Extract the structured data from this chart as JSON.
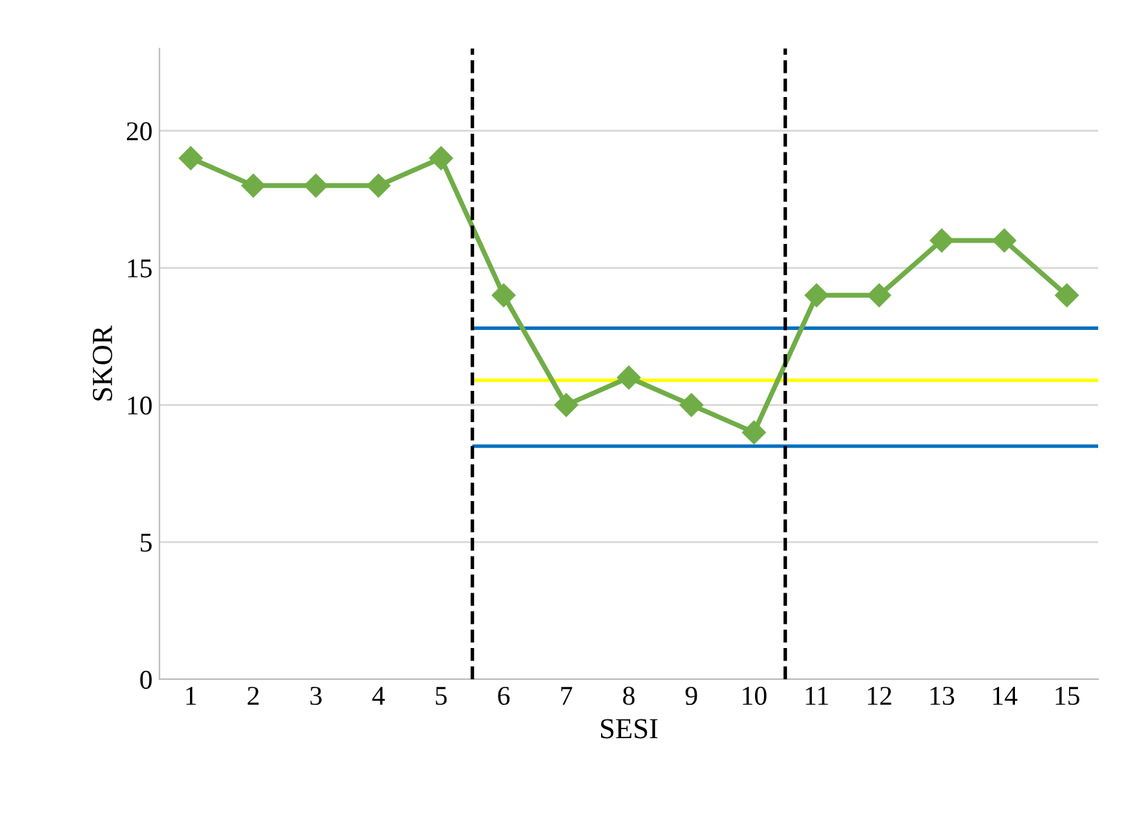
{
  "chart_data": {
    "type": "line",
    "xlabel": "SESI",
    "ylabel": "SKOR",
    "x": [
      1,
      2,
      3,
      4,
      5,
      6,
      7,
      8,
      9,
      10,
      11,
      12,
      13,
      14,
      15
    ],
    "series": [
      {
        "color": "#70ad47",
        "values": [
          19,
          18,
          18,
          18,
          19,
          14,
          10,
          11,
          10,
          9,
          14,
          14,
          16,
          16,
          14
        ],
        "marker": "diamond"
      }
    ],
    "xlim": [
      0.5,
      15.5
    ],
    "xticks": [
      1,
      2,
      3,
      4,
      5,
      6,
      7,
      8,
      9,
      10,
      11,
      12,
      13,
      14,
      15
    ],
    "ylim": [
      0,
      23
    ],
    "yticks": [
      0,
      5,
      10,
      15,
      20
    ],
    "grid": "y",
    "ref_lines": [
      {
        "axis": "x",
        "value": 5.5,
        "color": "#000000",
        "line_style": "dashed"
      },
      {
        "axis": "x",
        "value": 10.5,
        "color": "#000000",
        "line_style": "dashed"
      },
      {
        "axis": "y",
        "value": 12.8,
        "color": "#0070c0",
        "line_style": "solid"
      },
      {
        "axis": "y",
        "value": 10.9,
        "color": "#ffff00",
        "line_style": "solid"
      },
      {
        "axis": "y",
        "value": 8.5,
        "color": "#0070c0",
        "line_style": "solid"
      }
    ]
  }
}
